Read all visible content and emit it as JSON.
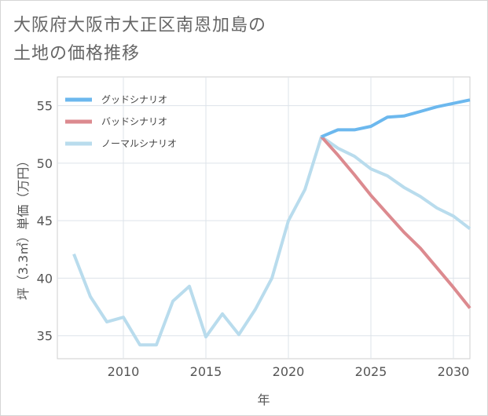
{
  "page": {
    "title_line1": "大阪府大阪市大正区南恩加島の",
    "title_line2": "土地の価格推移"
  },
  "chart_data": {
    "type": "line",
    "xlabel": "年",
    "ylabel": "坪（3.3㎡）単価（万円）",
    "xlim": [
      2006,
      2031
    ],
    "ylim": [
      33,
      57.5
    ],
    "xticks": [
      2010,
      2015,
      2020,
      2025,
      2030
    ],
    "yticks": [
      35,
      40,
      45,
      50,
      55
    ],
    "grid": true,
    "legend_position": "top-left",
    "series": [
      {
        "name": "グッドシナリオ",
        "color": "#6cb8ee",
        "x": [
          2022,
          2023,
          2024,
          2025,
          2026,
          2027,
          2028,
          2029,
          2030,
          2031
        ],
        "y": [
          52.3,
          52.9,
          52.9,
          53.2,
          54.0,
          54.1,
          54.5,
          54.9,
          55.2,
          55.5
        ]
      },
      {
        "name": "バッドシナリオ",
        "color": "#dc8a8f",
        "x": [
          2022,
          2023,
          2024,
          2025,
          2026,
          2027,
          2028,
          2029,
          2030,
          2031
        ],
        "y": [
          52.3,
          50.7,
          49.0,
          47.2,
          45.6,
          44.0,
          42.6,
          40.9,
          39.2,
          37.4
        ]
      },
      {
        "name": "ノーマルシナリオ",
        "color": "#b9dced",
        "x": [
          2007,
          2008,
          2009,
          2010,
          2011,
          2012,
          2013,
          2014,
          2015,
          2016,
          2017,
          2018,
          2019,
          2020,
          2021,
          2022,
          2023,
          2024,
          2025,
          2026,
          2027,
          2028,
          2029,
          2030,
          2031
        ],
        "y": [
          42.1,
          38.4,
          36.2,
          36.6,
          34.2,
          34.2,
          38.0,
          39.3,
          34.9,
          36.9,
          35.1,
          37.3,
          40.0,
          45.0,
          47.7,
          52.3,
          51.3,
          50.6,
          49.5,
          48.9,
          47.9,
          47.1,
          46.1,
          45.4,
          44.3
        ]
      }
    ]
  }
}
